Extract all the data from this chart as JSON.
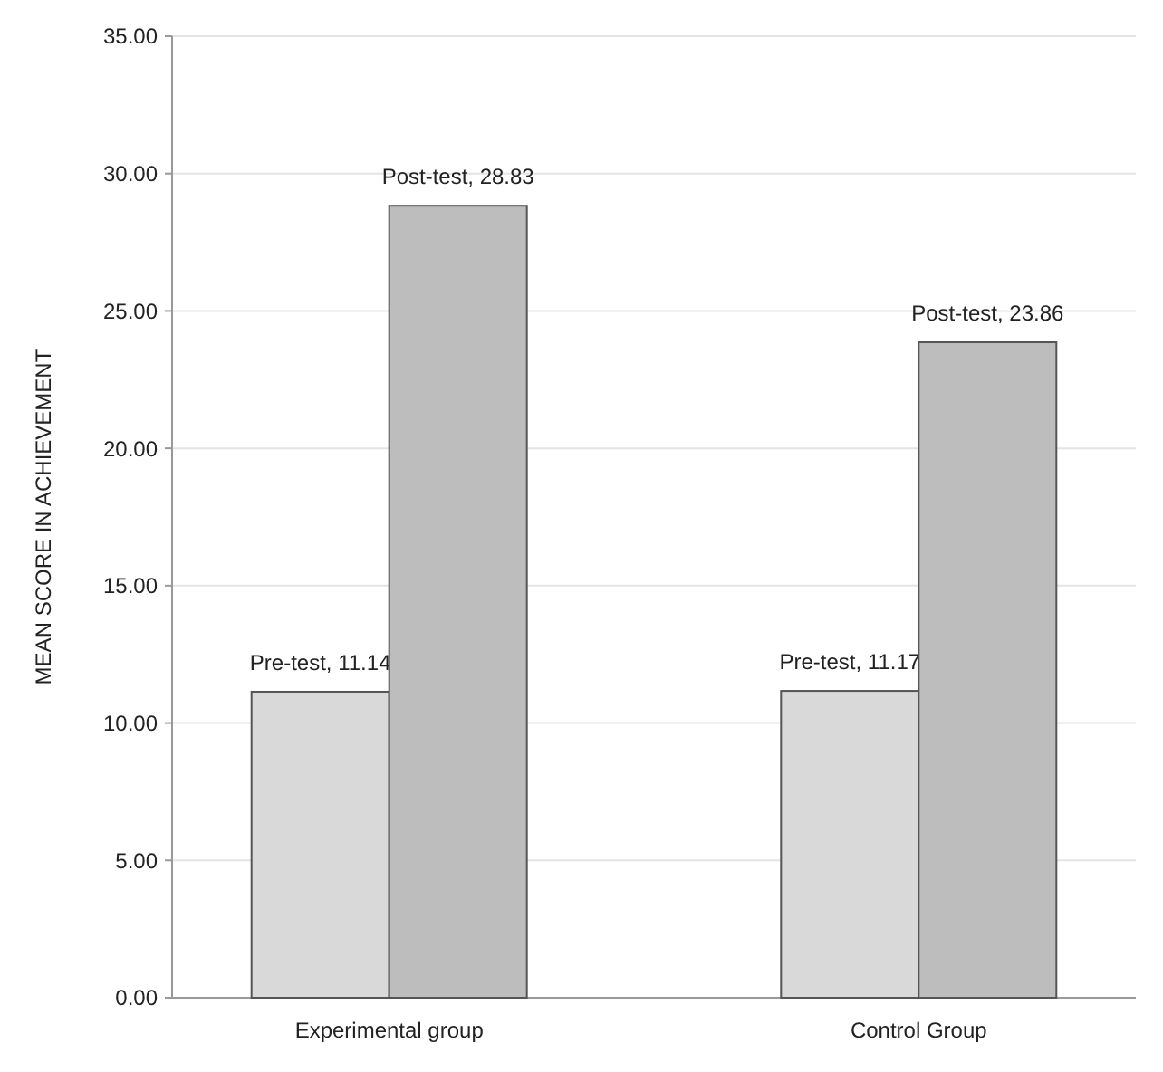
{
  "chart_data": {
    "type": "bar",
    "ylabel": "MEAN SCORE IN ACHIEVEMENT",
    "categories": [
      "Experimental group",
      "Control Group"
    ],
    "series": [
      {
        "color": "#d9d9d9",
        "values": [
          11.14,
          11.17
        ],
        "value_labels": [
          "Pre-test, 11.14",
          "Pre-test, 11.17"
        ]
      },
      {
        "color": "#bdbdbd",
        "values": [
          28.83,
          23.86
        ],
        "value_labels": [
          "Post-test, 28.83",
          "Post-test, 23.86"
        ]
      }
    ],
    "ylim": [
      0,
      35
    ],
    "yticks": [
      {
        "value": 0,
        "label": "0.00"
      },
      {
        "value": 5,
        "label": "5.00"
      },
      {
        "value": 10,
        "label": "10.00"
      },
      {
        "value": 15,
        "label": "15.00"
      },
      {
        "value": 20,
        "label": "20.00"
      },
      {
        "value": 25,
        "label": "25.00"
      },
      {
        "value": 30,
        "label": "30.00"
      },
      {
        "value": 35,
        "label": "35.00"
      }
    ],
    "grid": true
  }
}
